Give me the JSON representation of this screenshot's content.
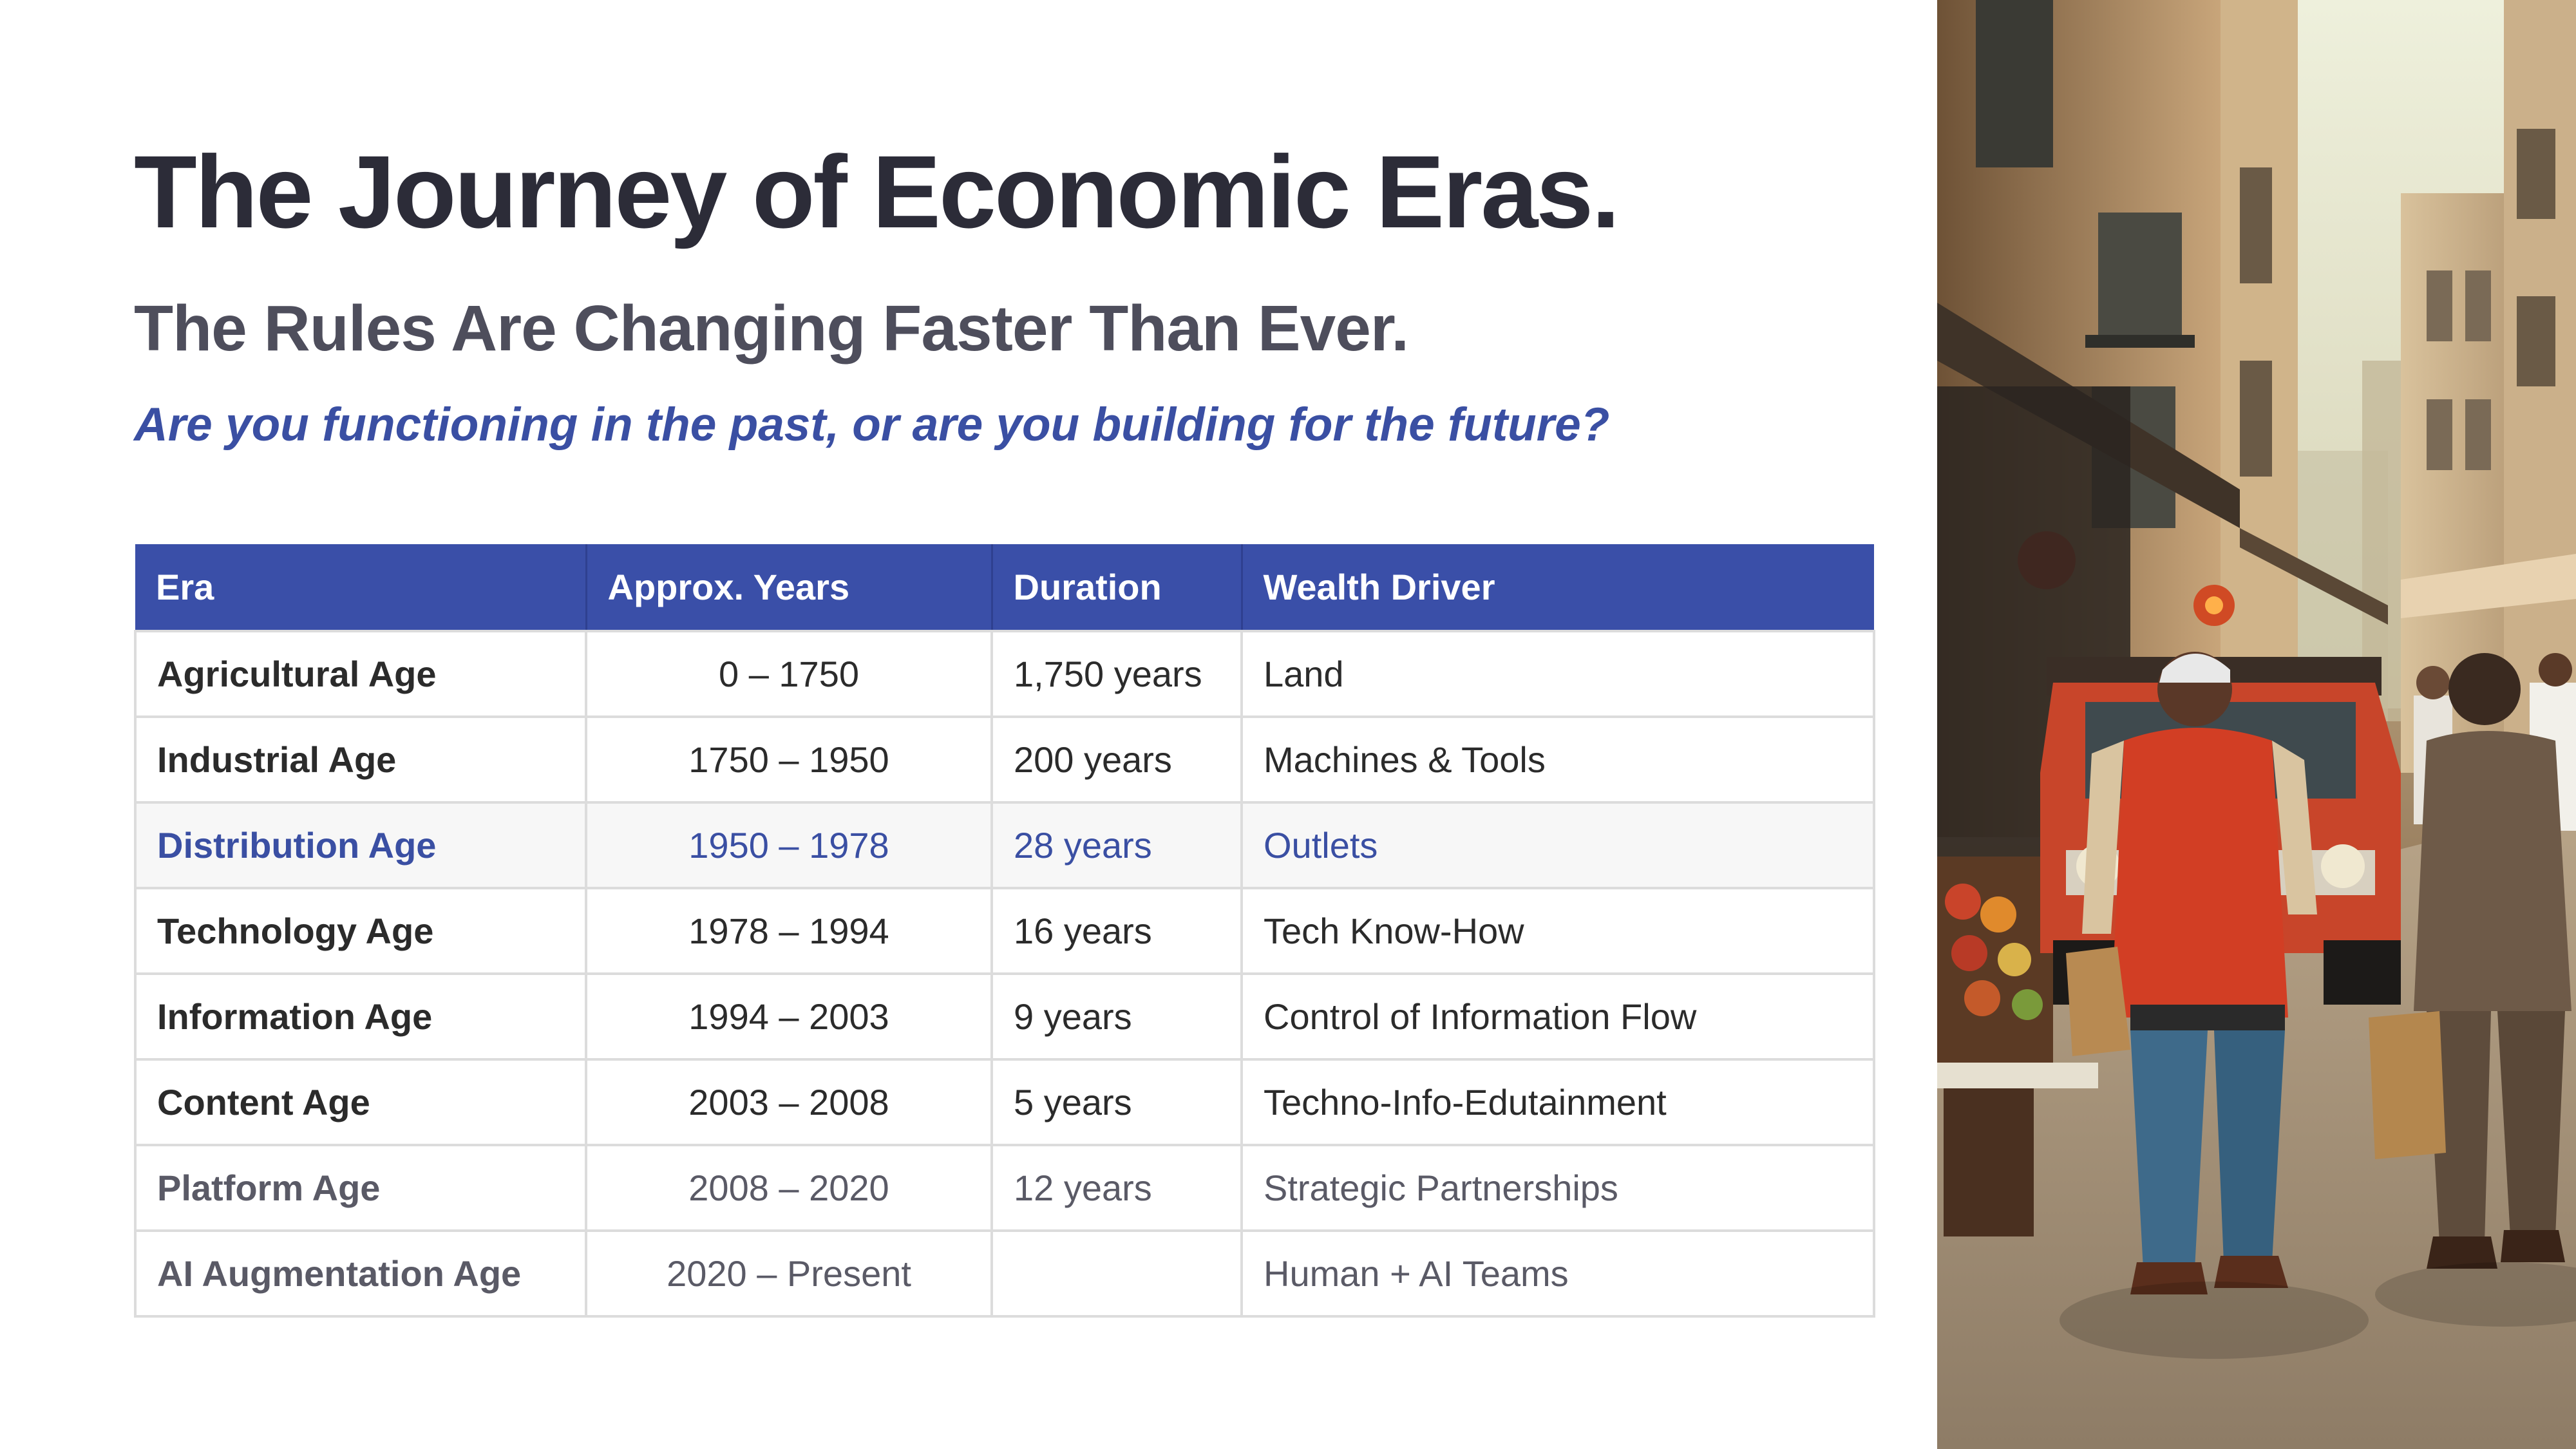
{
  "title": "The Journey of Economic Eras.",
  "subtitle": "The Rules Are Changing Faster Than Ever.",
  "question": "Are you functioning in the past, or are you building for the future?",
  "table": {
    "headers": [
      "Era",
      "Approx.  Years",
      "Duration",
      "Wealth  Driver"
    ],
    "rows": [
      {
        "era": "Agricultural Age",
        "years": "0 – 1750",
        "duration": "1,750 years",
        "driver": "Land",
        "style": "normal"
      },
      {
        "era": "Industrial Age",
        "years": "1750 – 1950",
        "duration": "200 years",
        "driver": "Machines & Tools",
        "style": "normal"
      },
      {
        "era": "Distribution Age",
        "years": "1950 – 1978",
        "duration": "28 years",
        "driver": "Outlets",
        "style": "highlight"
      },
      {
        "era": "Technology Age",
        "years": "1978 – 1994",
        "duration": "16 years",
        "driver": "Tech Know-How",
        "style": "normal"
      },
      {
        "era": "Information Age",
        "years": "1994 – 2003",
        "duration": "9 years",
        "driver": "Control of Information Flow",
        "style": "normal"
      },
      {
        "era": "Content Age",
        "years": "2003 – 2008",
        "duration": "5 years",
        "driver": "Techno-Info-Edutainment",
        "style": "normal"
      },
      {
        "era": "Platform Age",
        "years": "2008 – 2020",
        "duration": "12 years",
        "driver": "Strategic Partnerships",
        "style": "muted"
      },
      {
        "era": "AI Augmentation Age",
        "years": "2020 – Present",
        "duration": "",
        "driver": "Human + AI Teams",
        "style": "muted"
      }
    ]
  },
  "colors": {
    "accent": "#3a4fa8",
    "question": "#3a4fa3",
    "title": "#2c2c38",
    "subtitle": "#4e4e5c",
    "muted": "#5a5a66"
  }
}
